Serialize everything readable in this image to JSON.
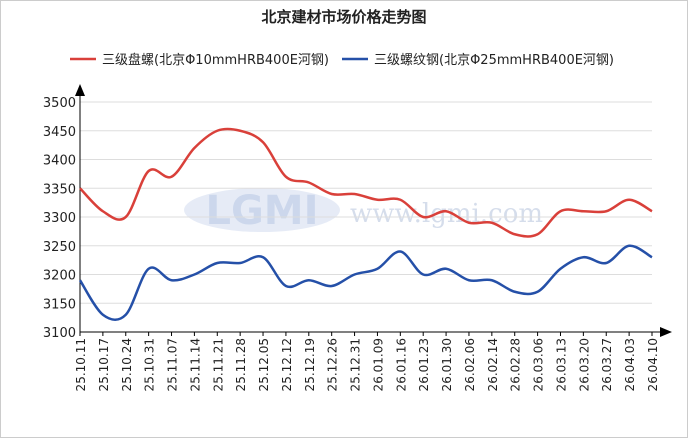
{
  "chart_data": {
    "type": "line",
    "title": "北京建材市场价格走势图",
    "watermark_logo": "LGMI",
    "watermark_url": "www.lgmi.com",
    "categories": [
      "25.10.11",
      "25.10.17",
      "25.10.24",
      "25.10.31",
      "25.11.07",
      "25.11.14",
      "25.11.21",
      "25.11.28",
      "25.12.05",
      "25.12.12",
      "25.12.19",
      "25.12.26",
      "25.12.31",
      "26.01.09",
      "26.01.16",
      "26.01.23",
      "26.01.30",
      "26.02.06",
      "26.02.14",
      "26.02.28",
      "26.03.06",
      "26.03.13",
      "26.03.20",
      "26.03.27",
      "26.04.03",
      "26.04.10"
    ],
    "series": [
      {
        "name": "三级盘螺(北京Φ10mmHRB400E河钢)",
        "color": "#d9403a",
        "values": [
          3350,
          3310,
          3300,
          3380,
          3370,
          3420,
          3450,
          3450,
          3430,
          3370,
          3360,
          3340,
          3340,
          3330,
          3330,
          3300,
          3310,
          3290,
          3290,
          3270,
          3270,
          3310,
          3310,
          3310,
          3330,
          3310
        ]
      },
      {
        "name": "三级螺纹钢(北京Φ25mmHRB400E河钢)",
        "color": "#2550a8",
        "values": [
          3190,
          3130,
          3130,
          3210,
          3190,
          3200,
          3220,
          3220,
          3230,
          3180,
          3190,
          3180,
          3200,
          3210,
          3240,
          3200,
          3210,
          3190,
          3190,
          3170,
          3170,
          3210,
          3230,
          3220,
          3250,
          3230
        ]
      }
    ],
    "ylim": [
      3100,
      3500
    ],
    "yticks": [
      3100,
      3150,
      3200,
      3250,
      3300,
      3350,
      3400,
      3450,
      3500
    ],
    "grid": true
  }
}
